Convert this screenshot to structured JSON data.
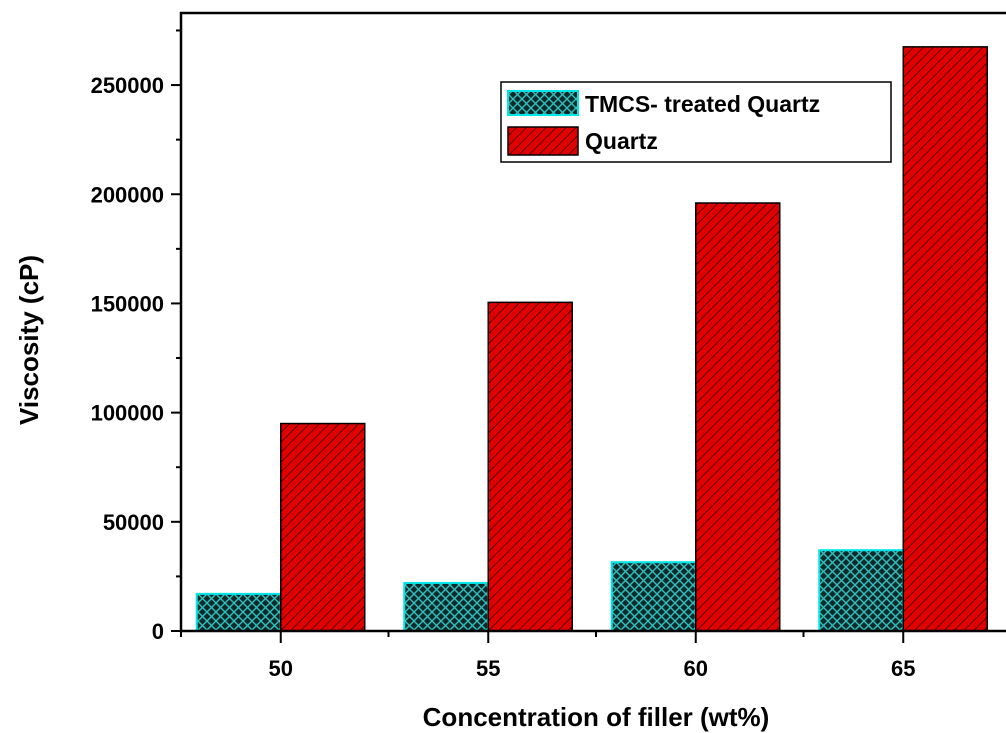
{
  "chart_data": {
    "type": "bar",
    "categories": [
      "50",
      "55",
      "60",
      "65"
    ],
    "series": [
      {
        "name": "TMCS- treated Quartz",
        "values": [
          17000,
          22000,
          31500,
          37000
        ],
        "fill": "#0b2a2a",
        "stroke": "#00e5e5",
        "pattern": "crosshatch"
      },
      {
        "name": "Quartz",
        "values": [
          95000,
          150500,
          196000,
          267500
        ],
        "fill": "#e10000",
        "stroke": "#000000",
        "pattern": "diagonal"
      }
    ],
    "xlabel": "Concentration of filler (wt%)",
    "ylabel": "Viscosity (cP)",
    "ylim": [
      0,
      283000
    ],
    "yticks": [
      "0",
      "50000",
      "100000",
      "150000",
      "200000",
      "250000"
    ],
    "legend_position": "top-right",
    "grid": false
  }
}
